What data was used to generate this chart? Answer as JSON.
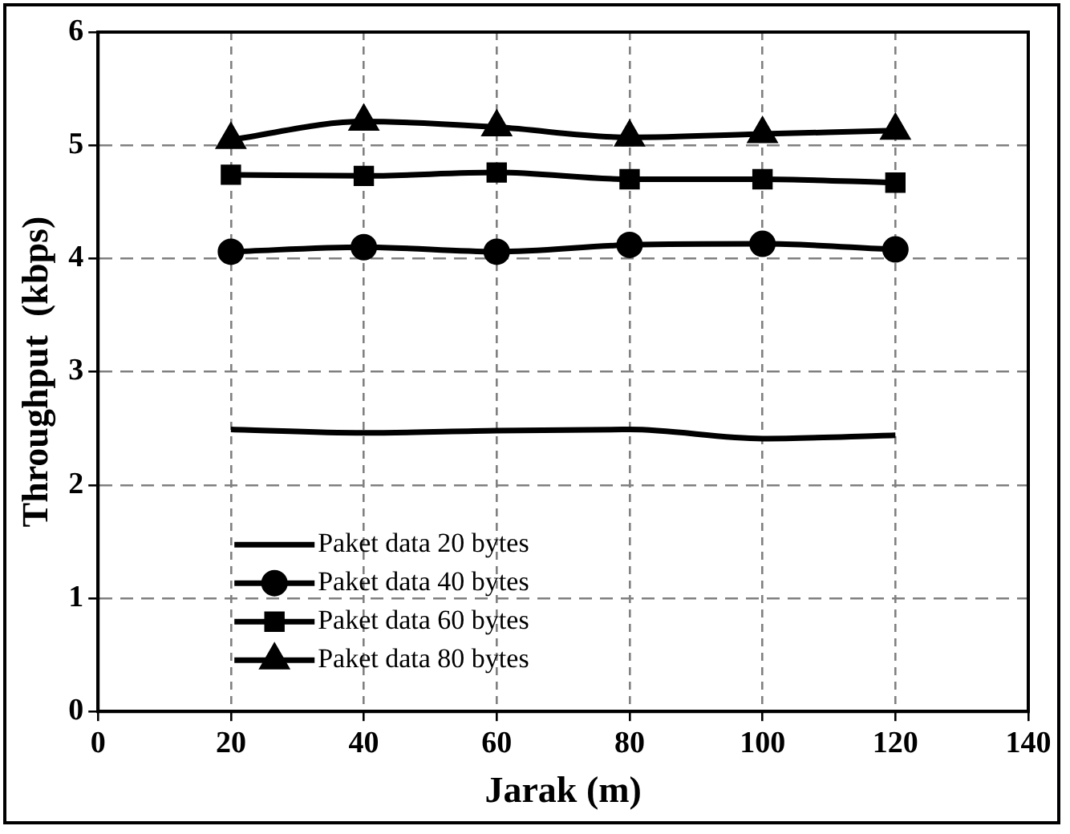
{
  "chart_data": {
    "type": "line",
    "xlabel": "Jarak (m)",
    "ylabel": "Throughput  (kbps)",
    "x": [
      20,
      40,
      60,
      80,
      100,
      120
    ],
    "series": [
      {
        "name": "Paket data 20 bytes",
        "color": "#000000",
        "marker": "none",
        "values": [
          2.49,
          2.46,
          2.48,
          2.49,
          2.41,
          2.44
        ]
      },
      {
        "name": "Paket data 40 bytes",
        "color": "#000000",
        "marker": "circle",
        "values": [
          4.06,
          4.1,
          4.06,
          4.12,
          4.13,
          4.08
        ]
      },
      {
        "name": "Paket data 60 bytes",
        "color": "#000000",
        "marker": "square",
        "values": [
          4.74,
          4.73,
          4.76,
          4.7,
          4.7,
          4.67
        ]
      },
      {
        "name": "Paket data 80 bytes",
        "color": "#000000",
        "marker": "triangle",
        "values": [
          5.05,
          5.21,
          5.16,
          5.07,
          5.1,
          5.13
        ]
      }
    ],
    "xlim": [
      0,
      140
    ],
    "xticks": [
      0,
      20,
      40,
      60,
      80,
      100,
      120,
      140
    ],
    "ylim": [
      0,
      6
    ],
    "yticks": [
      0,
      1,
      2,
      3,
      4,
      5,
      6
    ],
    "grid": true,
    "legend": "bottom left"
  }
}
